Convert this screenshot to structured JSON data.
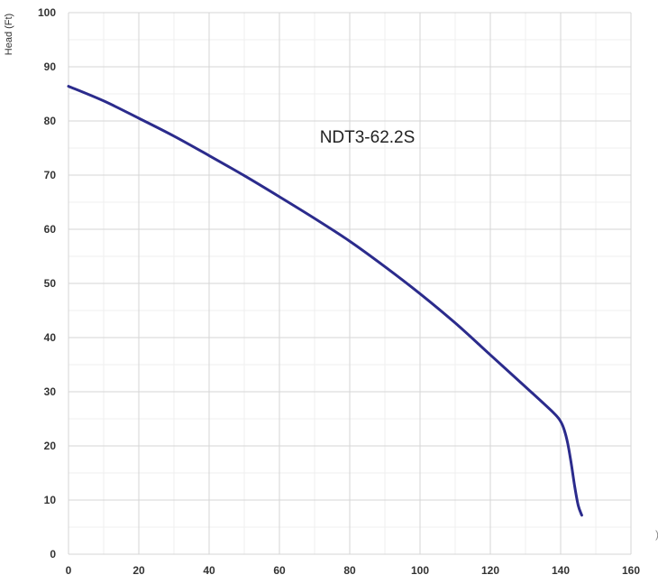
{
  "chart_data": {
    "type": "line",
    "title": "",
    "ylabel": "Head (Ft)",
    "xlabel": "",
    "xlim": [
      0,
      160
    ],
    "ylim": [
      0,
      100
    ],
    "xticks": [
      0,
      20,
      40,
      60,
      80,
      100,
      120,
      140,
      160
    ],
    "yticks": [
      0,
      10,
      20,
      30,
      40,
      50,
      60,
      70,
      80,
      90,
      100
    ],
    "grid": true,
    "series": [
      {
        "name": "NDT3-62.2S",
        "color": "#2b2b8c",
        "x": [
          0,
          10,
          20,
          30,
          40,
          50,
          60,
          70,
          80,
          90,
          100,
          110,
          120,
          130,
          138,
          140,
          141,
          142,
          143,
          144,
          145,
          146
        ],
        "y": [
          86.4,
          83.7,
          80.5,
          77.2,
          73.6,
          69.9,
          66.0,
          62.0,
          57.8,
          53.1,
          48.1,
          42.7,
          36.8,
          30.9,
          26.1,
          24.5,
          23.0,
          20.5,
          16.8,
          12.5,
          9.0,
          7.2
        ]
      }
    ],
    "annotations": [
      {
        "text": "NDT3-62.2S",
        "x": 85,
        "y": 76
      }
    ]
  }
}
